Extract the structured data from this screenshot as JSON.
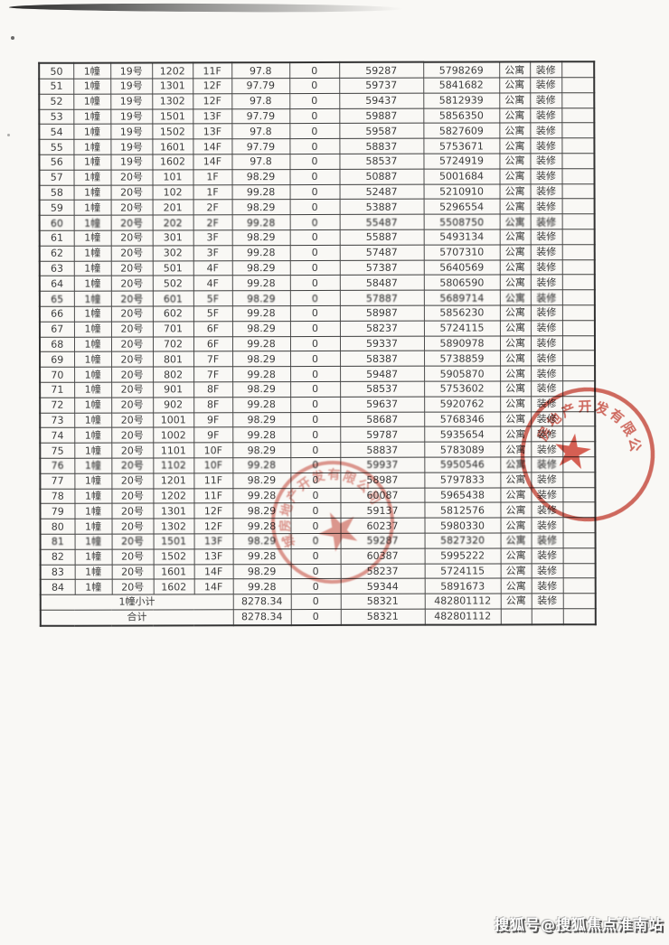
{
  "page": {
    "watermark": "搜狐号@搜狐焦点淮南站"
  },
  "table": {
    "rows": [
      [
        "50",
        "1幢",
        "19号",
        "1202",
        "11F",
        "97.8",
        "0",
        "59287",
        "5798269",
        "公寓",
        "装修",
        ""
      ],
      [
        "51",
        "1幢",
        "19号",
        "1301",
        "12F",
        "97.79",
        "0",
        "59737",
        "5841682",
        "公寓",
        "装修",
        ""
      ],
      [
        "52",
        "1幢",
        "19号",
        "1302",
        "12F",
        "97.8",
        "0",
        "59437",
        "5812939",
        "公寓",
        "装修",
        ""
      ],
      [
        "53",
        "1幢",
        "19号",
        "1501",
        "13F",
        "97.79",
        "0",
        "59887",
        "5856350",
        "公寓",
        "装修",
        ""
      ],
      [
        "54",
        "1幢",
        "19号",
        "1502",
        "13F",
        "97.8",
        "0",
        "59587",
        "5827609",
        "公寓",
        "装修",
        ""
      ],
      [
        "55",
        "1幢",
        "19号",
        "1601",
        "14F",
        "97.79",
        "0",
        "58837",
        "5753671",
        "公寓",
        "装修",
        ""
      ],
      [
        "56",
        "1幢",
        "19号",
        "1602",
        "14F",
        "97.8",
        "0",
        "58537",
        "5724919",
        "公寓",
        "装修",
        ""
      ],
      [
        "57",
        "1幢",
        "20号",
        "101",
        "1F",
        "98.29",
        "0",
        "50887",
        "5001684",
        "公寓",
        "装修",
        ""
      ],
      [
        "58",
        "1幢",
        "20号",
        "102",
        "1F",
        "99.28",
        "0",
        "52487",
        "5210910",
        "公寓",
        "装修",
        ""
      ],
      [
        "59",
        "1幢",
        "20号",
        "201",
        "2F",
        "98.29",
        "0",
        "53887",
        "5296554",
        "公寓",
        "装修",
        ""
      ],
      [
        "60",
        "1幢",
        "20号",
        "202",
        "2F",
        "99.28",
        "0",
        "55487",
        "5508750",
        "公寓",
        "装修",
        ""
      ],
      [
        "61",
        "1幢",
        "20号",
        "301",
        "3F",
        "98.29",
        "0",
        "55887",
        "5493134",
        "公寓",
        "装修",
        ""
      ],
      [
        "62",
        "1幢",
        "20号",
        "302",
        "3F",
        "99.28",
        "0",
        "57487",
        "5707310",
        "公寓",
        "装修",
        ""
      ],
      [
        "63",
        "1幢",
        "20号",
        "501",
        "4F",
        "98.29",
        "0",
        "57387",
        "5640569",
        "公寓",
        "装修",
        ""
      ],
      [
        "64",
        "1幢",
        "20号",
        "502",
        "4F",
        "99.28",
        "0",
        "58487",
        "5806590",
        "公寓",
        "装修",
        ""
      ],
      [
        "65",
        "1幢",
        "20号",
        "601",
        "5F",
        "98.29",
        "0",
        "57887",
        "5689714",
        "公寓",
        "装修",
        ""
      ],
      [
        "66",
        "1幢",
        "20号",
        "602",
        "5F",
        "99.28",
        "0",
        "58987",
        "5856230",
        "公寓",
        "装修",
        ""
      ],
      [
        "67",
        "1幢",
        "20号",
        "701",
        "6F",
        "98.29",
        "0",
        "58237",
        "5724115",
        "公寓",
        "装修",
        ""
      ],
      [
        "68",
        "1幢",
        "20号",
        "702",
        "6F",
        "99.28",
        "0",
        "59337",
        "5890978",
        "公寓",
        "装修",
        ""
      ],
      [
        "69",
        "1幢",
        "20号",
        "801",
        "7F",
        "98.29",
        "0",
        "58387",
        "5738859",
        "公寓",
        "装修",
        ""
      ],
      [
        "70",
        "1幢",
        "20号",
        "802",
        "7F",
        "99.28",
        "0",
        "59487",
        "5905870",
        "公寓",
        "装修",
        ""
      ],
      [
        "71",
        "1幢",
        "20号",
        "901",
        "8F",
        "98.29",
        "0",
        "58537",
        "5753602",
        "公寓",
        "装修",
        ""
      ],
      [
        "72",
        "1幢",
        "20号",
        "902",
        "8F",
        "99.28",
        "0",
        "59637",
        "5920762",
        "公寓",
        "装修",
        ""
      ],
      [
        "73",
        "1幢",
        "20号",
        "1001",
        "9F",
        "98.29",
        "0",
        "58687",
        "5768346",
        "公寓",
        "装修",
        ""
      ],
      [
        "74",
        "1幢",
        "20号",
        "1002",
        "9F",
        "99.28",
        "0",
        "59787",
        "5935654",
        "公寓",
        "装修",
        ""
      ],
      [
        "75",
        "1幢",
        "20号",
        "1101",
        "10F",
        "98.29",
        "0",
        "58837",
        "5783089",
        "公寓",
        "装修",
        ""
      ],
      [
        "76",
        "1幢",
        "20号",
        "1102",
        "10F",
        "99.28",
        "0",
        "59937",
        "5950546",
        "公寓",
        "装修",
        ""
      ],
      [
        "77",
        "1幢",
        "20号",
        "1201",
        "11F",
        "98.29",
        "0",
        "58987",
        "5797833",
        "公寓",
        "装修",
        ""
      ],
      [
        "78",
        "1幢",
        "20号",
        "1202",
        "11F",
        "99.28",
        "0",
        "60087",
        "5965438",
        "公寓",
        "装修",
        ""
      ],
      [
        "79",
        "1幢",
        "20号",
        "1301",
        "12F",
        "98.29",
        "0",
        "59137",
        "5812576",
        "公寓",
        "装修",
        ""
      ],
      [
        "80",
        "1幢",
        "20号",
        "1302",
        "12F",
        "99.28",
        "0",
        "60237",
        "5980330",
        "公寓",
        "装修",
        ""
      ],
      [
        "81",
        "1幢",
        "20号",
        "1501",
        "13F",
        "98.29",
        "0",
        "59287",
        "5827320",
        "公寓",
        "装修",
        ""
      ],
      [
        "82",
        "1幢",
        "20号",
        "1502",
        "13F",
        "99.28",
        "0",
        "60387",
        "5995222",
        "公寓",
        "装修",
        ""
      ],
      [
        "83",
        "1幢",
        "20号",
        "1601",
        "14F",
        "98.29",
        "0",
        "58237",
        "5724115",
        "公寓",
        "装修",
        ""
      ],
      [
        "84",
        "1幢",
        "20号",
        "1602",
        "14F",
        "99.28",
        "0",
        "59344",
        "5891673",
        "公寓",
        "装修",
        ""
      ]
    ],
    "subtotal_row": {
      "label": "1幢小计",
      "cells": [
        "8278.34",
        "0",
        "58321",
        "482801112",
        "公寓",
        "装修",
        ""
      ]
    },
    "total_row": {
      "label": "合计",
      "cells": [
        "8278.34",
        "0",
        "58321",
        "482801112",
        "",
        "",
        ""
      ]
    }
  },
  "seals": {
    "left": {
      "ring_text": "城房地产开发有限公司"
    },
    "right": {
      "ring_text": "城房地产开发有限公司"
    }
  },
  "seal_color": "#c8473a"
}
